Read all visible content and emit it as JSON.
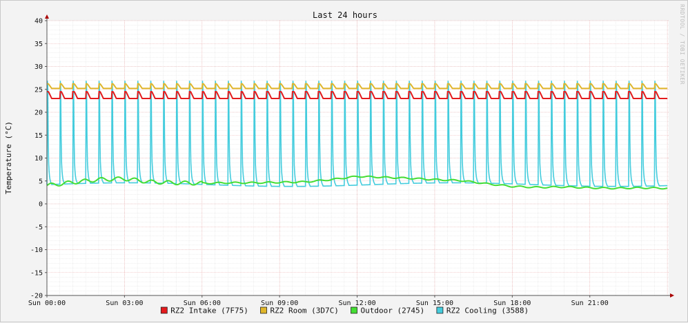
{
  "chart_data": {
    "type": "line",
    "title": "Last 24 hours",
    "ylabel": "Temperature (°C)",
    "xlabel": "",
    "watermark": "RRDTOOL / TOBI OETIKER",
    "ylim": [
      -20,
      40
    ],
    "xlim_hours": [
      0,
      24
    ],
    "y_ticks": [
      40,
      35,
      30,
      25,
      20,
      15,
      10,
      5,
      0,
      -5,
      -10,
      -15,
      -20
    ],
    "x_tick_labels": [
      "Sun 00:00",
      "Sun 03:00",
      "Sun 06:00",
      "Sun 09:00",
      "Sun 12:00",
      "Sun 15:00",
      "Sun 18:00",
      "Sun 21:00"
    ],
    "grid": true,
    "legend_position": "bottom",
    "series": [
      {
        "name": "RZ2 Intake (7F75)",
        "color": "#e41a1c",
        "pattern": "sawtooth",
        "cycle_hours": 0.5,
        "low": 23.0,
        "high": 24.5
      },
      {
        "name": "RZ2 Room (3D7C)",
        "color": "#e0b62a",
        "pattern": "sawtooth",
        "cycle_hours": 0.5,
        "low": 25.2,
        "high": 26.2
      },
      {
        "name": "Outdoor (2745)",
        "color": "#44dd33",
        "pattern": "smooth",
        "x": [
          0,
          1,
          2,
          3,
          4,
          5,
          6,
          7,
          8,
          9,
          10,
          11,
          12,
          13,
          14,
          15,
          16,
          17,
          18,
          19,
          20,
          21,
          22,
          23,
          24
        ],
        "y": [
          4.0,
          4.7,
          5.3,
          5.5,
          4.8,
          4.6,
          4.5,
          4.6,
          4.6,
          4.7,
          4.8,
          5.3,
          6.0,
          5.8,
          5.6,
          5.3,
          5.1,
          4.4,
          3.8,
          3.6,
          3.7,
          3.5,
          3.4,
          3.5,
          3.4
        ]
      },
      {
        "name": "RZ2 Cooling (3588)",
        "color": "#44ccdd",
        "pattern": "spikes",
        "cycle_hours": 0.5,
        "peak": 27.0,
        "floor": 4.2
      }
    ]
  }
}
